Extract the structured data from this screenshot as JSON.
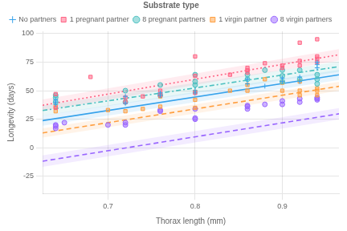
{
  "chart_data": {
    "type": "scatter",
    "xlabel": "Thorax length (mm)",
    "ylabel": "Longevity (days)",
    "xlim": [
      0.625,
      0.965
    ],
    "ylim": [
      -40,
      102
    ],
    "xticks": [
      0.7,
      0.8,
      0.9
    ],
    "yticks": [
      -25,
      0,
      25,
      50,
      75,
      100
    ],
    "grid": true,
    "legend": "top",
    "legend_title": "Substrate type",
    "series": [
      {
        "name": "No partners",
        "color": "#36a2eb",
        "marker": "cross",
        "x": [
          0.64,
          0.64,
          0.64,
          0.72,
          0.72,
          0.76,
          0.76,
          0.8,
          0.8,
          0.86,
          0.86,
          0.88,
          0.9,
          0.9,
          0.92,
          0.92,
          0.94,
          0.94,
          0.94
        ],
        "values": [
          40,
          42,
          38,
          39,
          45,
          46,
          48,
          48,
          50,
          56,
          60,
          54,
          58,
          61,
          58,
          62,
          73,
          75,
          70
        ],
        "fit": {
          "x": [
            0.625,
            0.965
          ],
          "values": [
            23.75,
            63.87
          ],
          "lower": [
            19.25,
            59.37
          ],
          "upper": [
            28.25,
            68.37
          ],
          "line_style": "solid"
        }
      },
      {
        "name": "1 pregnant partner",
        "color": "#ff6384",
        "marker": "square",
        "x": [
          0.64,
          0.64,
          0.68,
          0.72,
          0.72,
          0.74,
          0.76,
          0.76,
          0.8,
          0.8,
          0.8,
          0.84,
          0.86,
          0.86,
          0.86,
          0.88,
          0.9,
          0.9,
          0.92,
          0.92,
          0.92,
          0.94,
          0.94,
          0.94,
          0.94
        ],
        "values": [
          35,
          47,
          62,
          40,
          44,
          45,
          46,
          50,
          48,
          63,
          80,
          64,
          66,
          68,
          70,
          74,
          70,
          72,
          72,
          76,
          92,
          75,
          78,
          80,
          95
        ],
        "fit": {
          "x": [
            0.625,
            0.965
          ],
          "values": [
            37.25,
            81.45
          ],
          "lower": [
            32.25,
            76.45
          ],
          "upper": [
            42.25,
            86.45
          ],
          "line_style": "dotted"
        }
      },
      {
        "name": "8 pregnant partners",
        "color": "#4bc0c0",
        "marker": "circle",
        "x": [
          0.64,
          0.64,
          0.64,
          0.72,
          0.72,
          0.76,
          0.76,
          0.8,
          0.8,
          0.8,
          0.86,
          0.86,
          0.88,
          0.9,
          0.9,
          0.9,
          0.92,
          0.92,
          0.94,
          0.94,
          0.94
        ],
        "values": [
          40,
          44,
          46,
          40,
          50,
          46,
          55,
          55,
          58,
          64,
          60,
          64,
          68,
          58,
          63,
          68,
          60,
          68,
          56,
          60,
          64
        ],
        "fit": {
          "x": [
            0.625,
            0.965
          ],
          "values": [
            32.625,
            71.045
          ],
          "lower": [
            28.125,
            66.545
          ],
          "upper": [
            37.125,
            75.545
          ],
          "line_style": "dashdot"
        }
      },
      {
        "name": "1 virgin partner",
        "color": "#ff9f40",
        "marker": "square",
        "x": [
          0.64,
          0.64,
          0.7,
          0.72,
          0.74,
          0.76,
          0.76,
          0.8,
          0.8,
          0.8,
          0.84,
          0.86,
          0.86,
          0.88,
          0.9,
          0.9,
          0.92,
          0.92,
          0.92,
          0.94,
          0.94,
          0.94
        ],
        "values": [
          32,
          36,
          33,
          32,
          34,
          36,
          45,
          35,
          49,
          42,
          50,
          50,
          55,
          60,
          50,
          57,
          46,
          50,
          58,
          50,
          52,
          46
        ],
        "fit": {
          "x": [
            0.625,
            0.965
          ],
          "values": [
            13,
            53.8
          ],
          "lower": [
            9,
            49.8
          ],
          "upper": [
            17,
            57.8
          ],
          "line_style": "dashed"
        }
      },
      {
        "name": "8 virgin partners",
        "color": "#9966ff",
        "marker": "circle",
        "x": [
          0.64,
          0.64,
          0.64,
          0.65,
          0.7,
          0.72,
          0.72,
          0.76,
          0.76,
          0.8,
          0.8,
          0.8,
          0.86,
          0.86,
          0.86,
          0.88,
          0.9,
          0.9,
          0.92,
          0.92,
          0.94,
          0.94,
          0.94
        ],
        "values": [
          17,
          19,
          20,
          22,
          20,
          20,
          22,
          32,
          33,
          26,
          25,
          34,
          34,
          37,
          36,
          38,
          38,
          41,
          40,
          43,
          42,
          44,
          43
        ],
        "fit": {
          "x": [
            0.625,
            0.965
          ],
          "values": [
            -11.75,
            29.73
          ],
          "lower": [
            -16.75,
            24.73
          ],
          "upper": [
            -6.75,
            34.73
          ],
          "line_style": "dashed"
        }
      }
    ]
  }
}
